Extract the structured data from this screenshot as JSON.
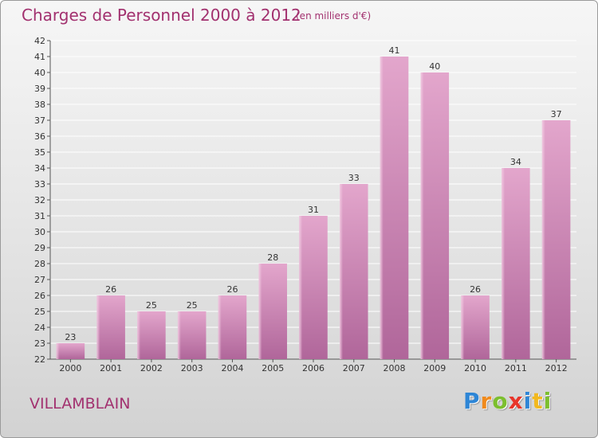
{
  "chart_data": {
    "type": "bar",
    "title": "Charges de Personnel 2000 à 2012",
    "subtitle": "(en milliers d'€)",
    "categories": [
      "2000",
      "2001",
      "2002",
      "2003",
      "2004",
      "2005",
      "2006",
      "2007",
      "2008",
      "2009",
      "2010",
      "2011",
      "2012"
    ],
    "values": [
      23,
      26,
      25,
      25,
      26,
      28,
      31,
      33,
      41,
      40,
      26,
      34,
      37
    ],
    "ylim": [
      22,
      42
    ],
    "yticks": [
      22,
      23,
      24,
      25,
      26,
      27,
      28,
      29,
      30,
      31,
      32,
      33,
      34,
      35,
      36,
      37,
      38,
      39,
      40,
      41,
      42
    ],
    "grid": true,
    "bar_color": "#c8729e"
  },
  "commune": "VILLAMBLAIN",
  "logo": {
    "letters": [
      {
        "char": "P",
        "color": "#2e86d6"
      },
      {
        "char": "r",
        "color": "#f08a1c"
      },
      {
        "char": "o",
        "color": "#7cbf2e"
      },
      {
        "char": "x",
        "color": "#e8352a"
      },
      {
        "char": "i",
        "color": "#2e86d6"
      },
      {
        "char": "t",
        "color": "#f2b81e"
      },
      {
        "char": "i",
        "color": "#7cbf2e"
      }
    ]
  }
}
